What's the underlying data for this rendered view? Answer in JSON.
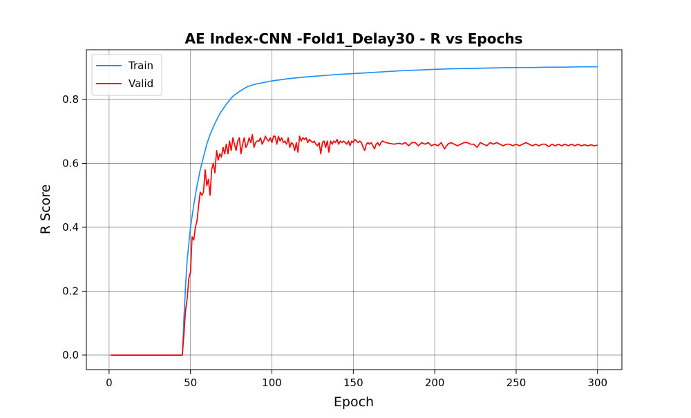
{
  "chart_data": {
    "type": "line",
    "title": "AE Index-CNN -Fold1_Delay30 - R vs Epochs",
    "xlabel": "Epoch",
    "ylabel": "R Score",
    "xlim": [
      -13.95,
      314.95
    ],
    "ylim": [
      -0.0455,
      0.9555
    ],
    "x_ticks": [
      0,
      50,
      100,
      150,
      200,
      250,
      300
    ],
    "x_tick_labels": [
      "0",
      "50",
      "100",
      "150",
      "200",
      "250",
      "300"
    ],
    "y_ticks": [
      0.0,
      0.2,
      0.4,
      0.6,
      0.8
    ],
    "y_tick_labels": [
      "0.0",
      "0.2",
      "0.4",
      "0.6",
      "0.8"
    ],
    "grid": true,
    "legend_position": "top-left",
    "series": [
      {
        "name": "Train",
        "color": "#1e90ff",
        "points": [
          [
            1,
            0
          ],
          [
            44,
            0
          ],
          [
            45,
            0.0
          ],
          [
            46,
            0.12
          ],
          [
            47,
            0.22
          ],
          [
            48,
            0.3
          ],
          [
            50,
            0.4
          ],
          [
            52,
            0.47
          ],
          [
            54,
            0.53
          ],
          [
            56,
            0.58
          ],
          [
            58,
            0.62
          ],
          [
            60,
            0.66
          ],
          [
            62,
            0.69
          ],
          [
            65,
            0.725
          ],
          [
            68,
            0.755
          ],
          [
            72,
            0.785
          ],
          [
            76,
            0.81
          ],
          [
            80,
            0.825
          ],
          [
            85,
            0.84
          ],
          [
            90,
            0.848
          ],
          [
            95,
            0.853
          ],
          [
            100,
            0.858
          ],
          [
            110,
            0.865
          ],
          [
            120,
            0.87
          ],
          [
            130,
            0.874
          ],
          [
            140,
            0.878
          ],
          [
            150,
            0.881
          ],
          [
            160,
            0.884
          ],
          [
            170,
            0.887
          ],
          [
            180,
            0.89
          ],
          [
            190,
            0.892
          ],
          [
            200,
            0.894
          ],
          [
            210,
            0.896
          ],
          [
            220,
            0.897
          ],
          [
            230,
            0.898
          ],
          [
            240,
            0.899
          ],
          [
            250,
            0.9
          ],
          [
            260,
            0.9
          ],
          [
            270,
            0.901
          ],
          [
            280,
            0.901
          ],
          [
            290,
            0.902
          ],
          [
            300,
            0.902
          ]
        ]
      },
      {
        "name": "Valid",
        "color": "#ff0000",
        "points": [
          [
            1,
            0
          ],
          [
            45,
            0
          ],
          [
            46,
            0.07
          ],
          [
            47,
            0.14
          ],
          [
            48,
            0.18
          ],
          [
            49,
            0.24
          ],
          [
            50,
            0.26
          ],
          [
            51,
            0.37
          ],
          [
            52,
            0.36
          ],
          [
            53,
            0.4
          ],
          [
            54,
            0.42
          ],
          [
            55,
            0.47
          ],
          [
            56,
            0.51
          ],
          [
            57,
            0.5
          ],
          [
            58,
            0.51
          ],
          [
            59,
            0.58
          ],
          [
            60,
            0.53
          ],
          [
            61,
            0.55
          ],
          [
            62,
            0.5
          ],
          [
            63,
            0.58
          ],
          [
            64,
            0.6
          ],
          [
            65,
            0.57
          ],
          [
            66,
            0.64
          ],
          [
            67,
            0.61
          ],
          [
            68,
            0.63
          ],
          [
            69,
            0.62
          ],
          [
            70,
            0.65
          ],
          [
            71,
            0.63
          ],
          [
            72,
            0.66
          ],
          [
            73,
            0.63
          ],
          [
            74,
            0.67
          ],
          [
            75,
            0.64
          ],
          [
            76,
            0.68
          ],
          [
            77,
            0.66
          ],
          [
            78,
            0.64
          ],
          [
            79,
            0.67
          ],
          [
            80,
            0.68
          ],
          [
            81,
            0.63
          ],
          [
            82,
            0.66
          ],
          [
            83,
            0.68
          ],
          [
            84,
            0.65
          ],
          [
            85,
            0.66
          ],
          [
            86,
            0.68
          ],
          [
            87,
            0.665
          ],
          [
            88,
            0.69
          ],
          [
            89,
            0.65
          ],
          [
            90,
            0.665
          ],
          [
            91,
            0.67
          ],
          [
            92,
            0.67
          ],
          [
            93,
            0.68
          ],
          [
            94,
            0.66
          ],
          [
            95,
            0.67
          ],
          [
            96,
            0.685
          ],
          [
            97,
            0.675
          ],
          [
            98,
            0.67
          ],
          [
            99,
            0.68
          ],
          [
            100,
            0.665
          ],
          [
            101,
            0.685
          ],
          [
            102,
            0.685
          ],
          [
            103,
            0.66
          ],
          [
            104,
            0.685
          ],
          [
            105,
            0.67
          ],
          [
            106,
            0.68
          ],
          [
            107,
            0.665
          ],
          [
            108,
            0.67
          ],
          [
            109,
            0.66
          ],
          [
            110,
            0.68
          ],
          [
            111,
            0.65
          ],
          [
            112,
            0.665
          ],
          [
            113,
            0.66
          ],
          [
            114,
            0.64
          ],
          [
            115,
            0.665
          ],
          [
            116,
            0.635
          ],
          [
            117,
            0.685
          ],
          [
            118,
            0.67
          ],
          [
            119,
            0.68
          ],
          [
            120,
            0.675
          ],
          [
            121,
            0.68
          ],
          [
            122,
            0.665
          ],
          [
            123,
            0.675
          ],
          [
            124,
            0.67
          ],
          [
            125,
            0.665
          ],
          [
            126,
            0.67
          ],
          [
            127,
            0.66
          ],
          [
            128,
            0.655
          ],
          [
            129,
            0.665
          ],
          [
            130,
            0.63
          ],
          [
            131,
            0.665
          ],
          [
            132,
            0.67
          ],
          [
            133,
            0.65
          ],
          [
            134,
            0.67
          ],
          [
            135,
            0.635
          ],
          [
            136,
            0.67
          ],
          [
            137,
            0.66
          ],
          [
            138,
            0.67
          ],
          [
            139,
            0.665
          ],
          [
            140,
            0.675
          ],
          [
            141,
            0.66
          ],
          [
            142,
            0.67
          ],
          [
            143,
            0.665
          ],
          [
            144,
            0.67
          ],
          [
            145,
            0.665
          ],
          [
            146,
            0.66
          ],
          [
            147,
            0.67
          ],
          [
            148,
            0.655
          ],
          [
            149,
            0.67
          ],
          [
            150,
            0.665
          ],
          [
            151,
            0.675
          ],
          [
            152,
            0.67
          ],
          [
            153,
            0.665
          ],
          [
            154,
            0.67
          ],
          [
            155,
            0.665
          ],
          [
            156,
            0.65
          ],
          [
            157,
            0.64
          ],
          [
            158,
            0.66
          ],
          [
            159,
            0.665
          ],
          [
            160,
            0.66
          ],
          [
            161,
            0.665
          ],
          [
            162,
            0.655
          ],
          [
            163,
            0.645
          ],
          [
            164,
            0.66
          ],
          [
            165,
            0.665
          ],
          [
            166,
            0.655
          ],
          [
            167,
            0.665
          ],
          [
            168,
            0.67
          ],
          [
            170,
            0.665
          ],
          [
            172,
            0.663
          ],
          [
            175,
            0.66
          ],
          [
            178,
            0.663
          ],
          [
            180,
            0.66
          ],
          [
            182,
            0.665
          ],
          [
            184,
            0.655
          ],
          [
            186,
            0.665
          ],
          [
            188,
            0.665
          ],
          [
            190,
            0.655
          ],
          [
            192,
            0.665
          ],
          [
            194,
            0.66
          ],
          [
            196,
            0.665
          ],
          [
            198,
            0.655
          ],
          [
            200,
            0.66
          ],
          [
            202,
            0.655
          ],
          [
            204,
            0.665
          ],
          [
            206,
            0.645
          ],
          [
            208,
            0.66
          ],
          [
            210,
            0.665
          ],
          [
            212,
            0.66
          ],
          [
            214,
            0.655
          ],
          [
            216,
            0.66
          ],
          [
            218,
            0.665
          ],
          [
            220,
            0.665
          ],
          [
            222,
            0.66
          ],
          [
            224,
            0.66
          ],
          [
            226,
            0.65
          ],
          [
            228,
            0.665
          ],
          [
            230,
            0.66
          ],
          [
            232,
            0.655
          ],
          [
            234,
            0.665
          ],
          [
            236,
            0.66
          ],
          [
            238,
            0.665
          ],
          [
            240,
            0.66
          ],
          [
            242,
            0.655
          ],
          [
            244,
            0.66
          ],
          [
            246,
            0.66
          ],
          [
            248,
            0.655
          ],
          [
            250,
            0.66
          ],
          [
            252,
            0.655
          ],
          [
            254,
            0.66
          ],
          [
            256,
            0.665
          ],
          [
            258,
            0.66
          ],
          [
            260,
            0.655
          ],
          [
            262,
            0.66
          ],
          [
            264,
            0.655
          ],
          [
            266,
            0.66
          ],
          [
            268,
            0.66
          ],
          [
            270,
            0.652
          ],
          [
            272,
            0.66
          ],
          [
            274,
            0.655
          ],
          [
            276,
            0.66
          ],
          [
            278,
            0.655
          ],
          [
            280,
            0.66
          ],
          [
            282,
            0.655
          ],
          [
            284,
            0.66
          ],
          [
            286,
            0.655
          ],
          [
            288,
            0.66
          ],
          [
            290,
            0.655
          ],
          [
            292,
            0.658
          ],
          [
            294,
            0.655
          ],
          [
            296,
            0.658
          ],
          [
            298,
            0.655
          ],
          [
            300,
            0.657
          ]
        ]
      }
    ]
  }
}
